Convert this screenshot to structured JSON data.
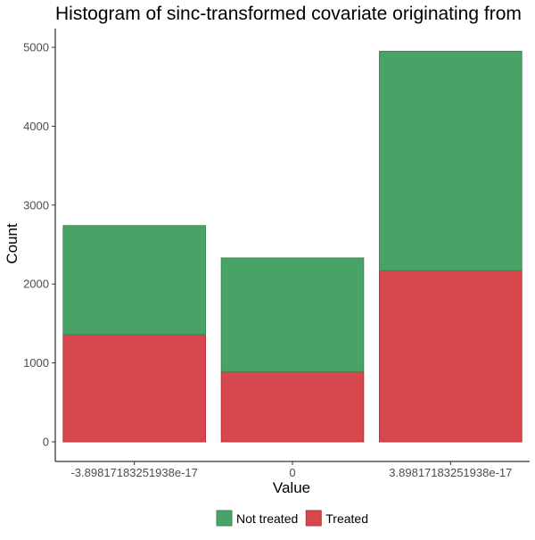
{
  "chart_data": {
    "type": "bar",
    "stacked": true,
    "title": "Histogram of sinc-transformed covariate originating from",
    "xlabel": "Value",
    "ylabel": "Count",
    "categories": [
      "-3.89817183251938e-17",
      "0",
      "3.89817183251938e-17"
    ],
    "series": [
      {
        "name": "Treated",
        "color": "#D7484E",
        "values": [
          1360,
          890,
          2170
        ]
      },
      {
        "name": "Not treated",
        "color": "#4AA366",
        "values": [
          1380,
          1440,
          2780
        ]
      }
    ],
    "ylim": [
      -200,
      5200
    ],
    "yticks": [
      0,
      1000,
      2000,
      3000,
      4000,
      5000
    ],
    "grid": false,
    "legend": {
      "position": "bottom",
      "order": [
        "Not treated",
        "Treated"
      ]
    }
  }
}
